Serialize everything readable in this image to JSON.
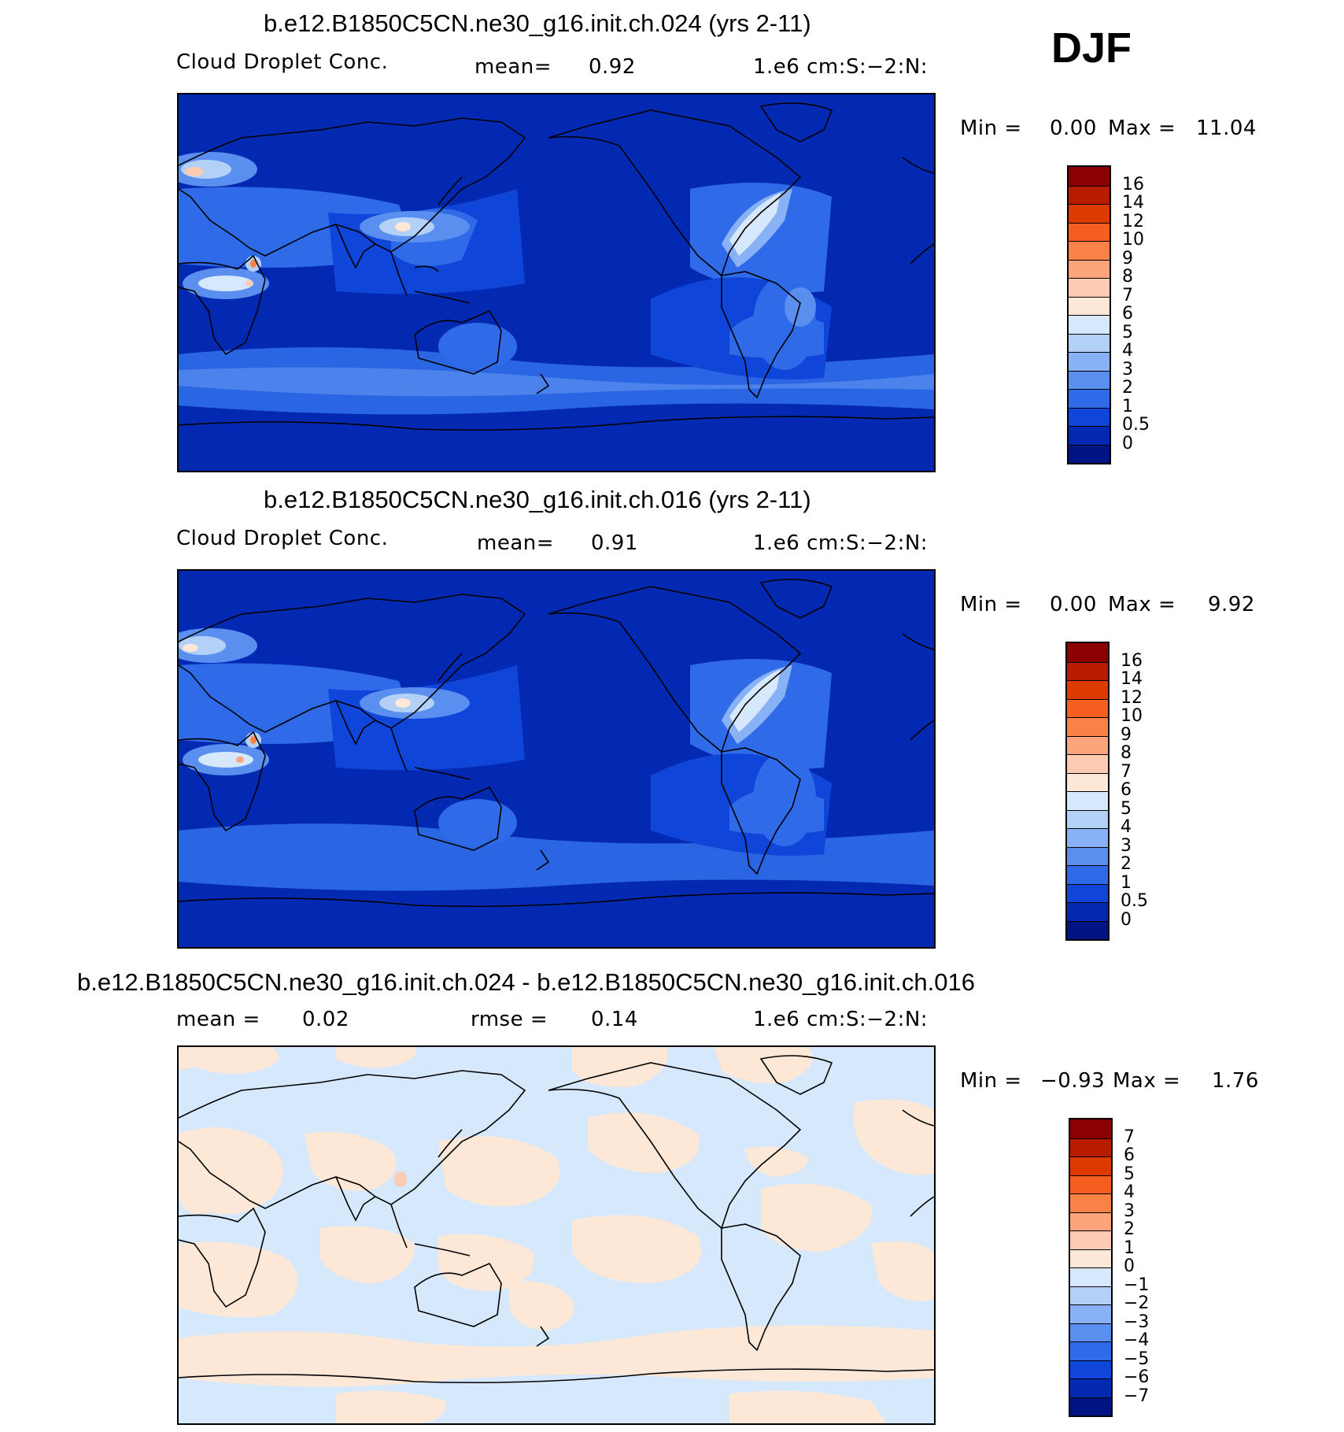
{
  "season": "DJF",
  "panels": [
    {
      "id": "top",
      "title": "b.e12.B1850C5CN.ne30_g16.init.ch.024 (yrs 2-11)",
      "left_label": "Cloud Droplet Conc.",
      "stat1_label": "mean=",
      "stat1_value": "0.92",
      "stat2_label": "",
      "stat2_value": "",
      "units": "1.e6 cm:S:−2:N:",
      "min_label": "Min =",
      "min_value": "0.00",
      "max_label": "Max =",
      "max_value": "11.04",
      "background": "#0329b3"
    },
    {
      "id": "middle",
      "title": "b.e12.B1850C5CN.ne30_g16.init.ch.016 (yrs 2-11)",
      "left_label": "Cloud Droplet Conc.",
      "stat1_label": "mean=",
      "stat1_value": "0.91",
      "stat2_label": "",
      "stat2_value": "",
      "units": "1.e6 cm:S:−2:N:",
      "min_label": "Min =",
      "min_value": "0.00",
      "max_label": "Max =",
      "max_value": "9.92",
      "background": "#0329b3"
    },
    {
      "id": "bottom",
      "title": "b.e12.B1850C5CN.ne30_g16.init.ch.024 - b.e12.B1850C5CN.ne30_g16.init.ch.016",
      "left_label": "mean =",
      "left_value": "0.02",
      "stat1_label": "rmse =",
      "stat1_value": "0.14",
      "units": "1.e6 cm:S:−2:N:",
      "min_label": "Min =",
      "min_value": "−0.93",
      "max_label": "Max =",
      "max_value": "1.76",
      "background": "#d6e8fb"
    }
  ],
  "colorbars": {
    "abs": {
      "labels": [
        "16",
        "14",
        "12",
        "10",
        "9",
        "8",
        "7",
        "6",
        "5",
        "4",
        "3",
        "2",
        "1",
        "0.5",
        "0"
      ],
      "colors": [
        "#8b0000",
        "#b81c00",
        "#dd3a00",
        "#f55e1e",
        "#fb8247",
        "#fca57d",
        "#fdcab4",
        "#fde8d8",
        "#d6e8fb",
        "#b3d0f7",
        "#88b2f5",
        "#5a8ff0",
        "#2f6be8",
        "#0f45d8",
        "#0329b3",
        "#001583"
      ]
    },
    "diff": {
      "labels": [
        "7",
        "6",
        "5",
        "4",
        "3",
        "2",
        "1",
        "0",
        "−1",
        "−2",
        "−3",
        "−4",
        "−5",
        "−6",
        "−7"
      ],
      "colors": [
        "#8b0000",
        "#b81c00",
        "#dd3a00",
        "#f55e1e",
        "#fb8247",
        "#fca57d",
        "#fdcab4",
        "#fde8d8",
        "#d6e8fb",
        "#b3d0f7",
        "#88b2f5",
        "#5a8ff0",
        "#2f6be8",
        "#0f45d8",
        "#0329b3",
        "#001583"
      ]
    }
  }
}
